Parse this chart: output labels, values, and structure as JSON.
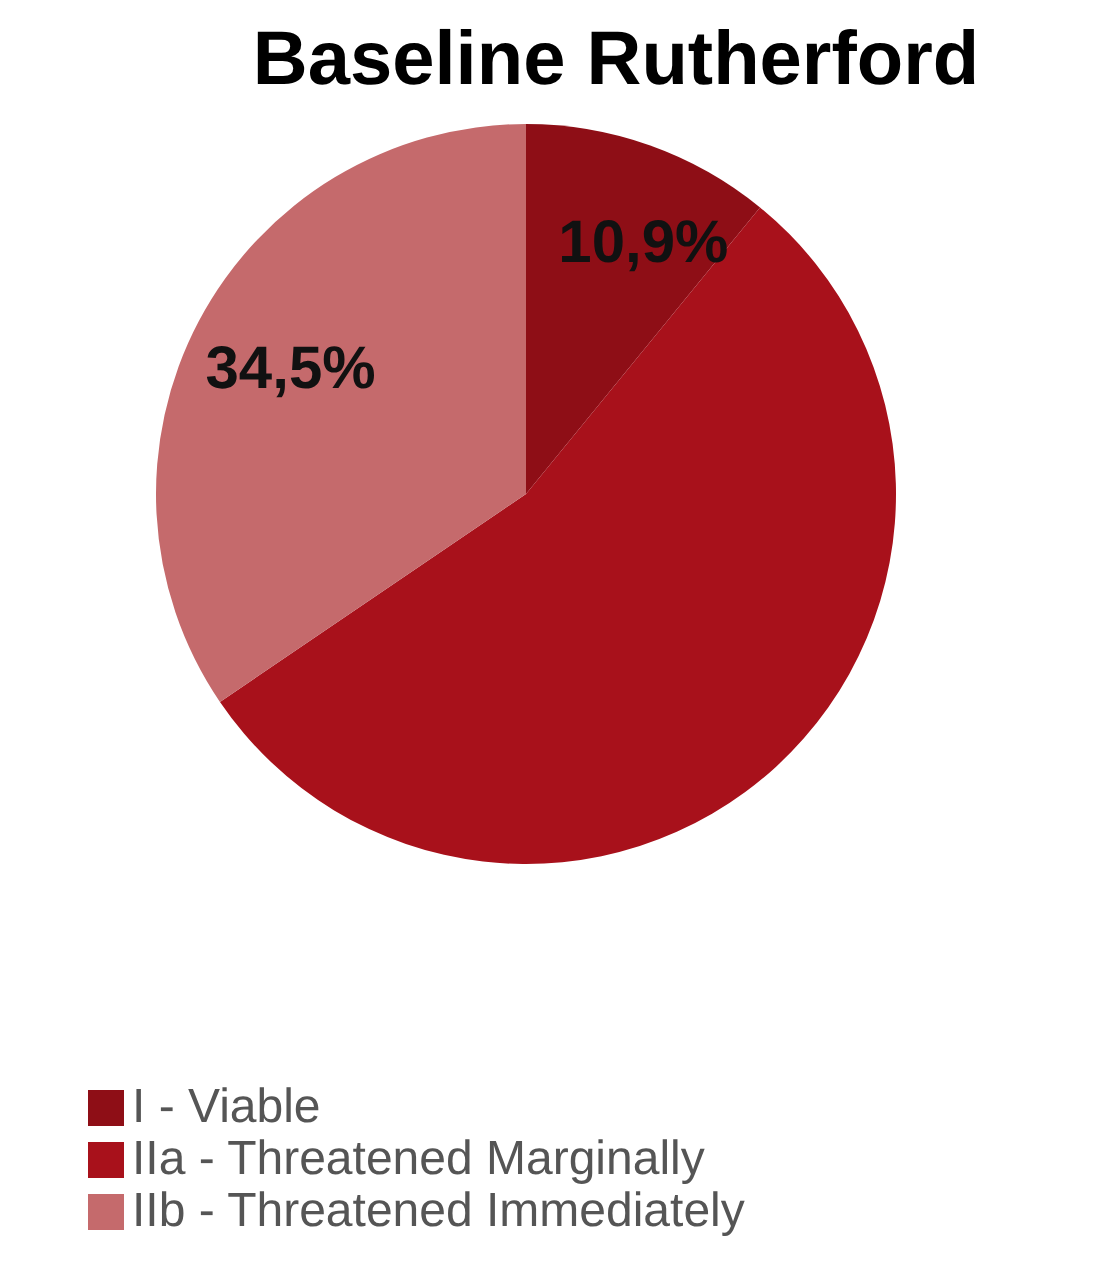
{
  "chart_data": {
    "type": "pie",
    "title": "Baseline Rutherford",
    "categories": [
      "I - Viable",
      "IIa - Threatened Marginally",
      "IIb - Threatened Immediately"
    ],
    "values": [
      10.9,
      54.6,
      34.5
    ],
    "value_labels": [
      "10,9%",
      null,
      "34,5%"
    ],
    "colors": [
      "#8e0e16",
      "#a8111b",
      "#c56a6c"
    ],
    "legend": "bottom left"
  }
}
